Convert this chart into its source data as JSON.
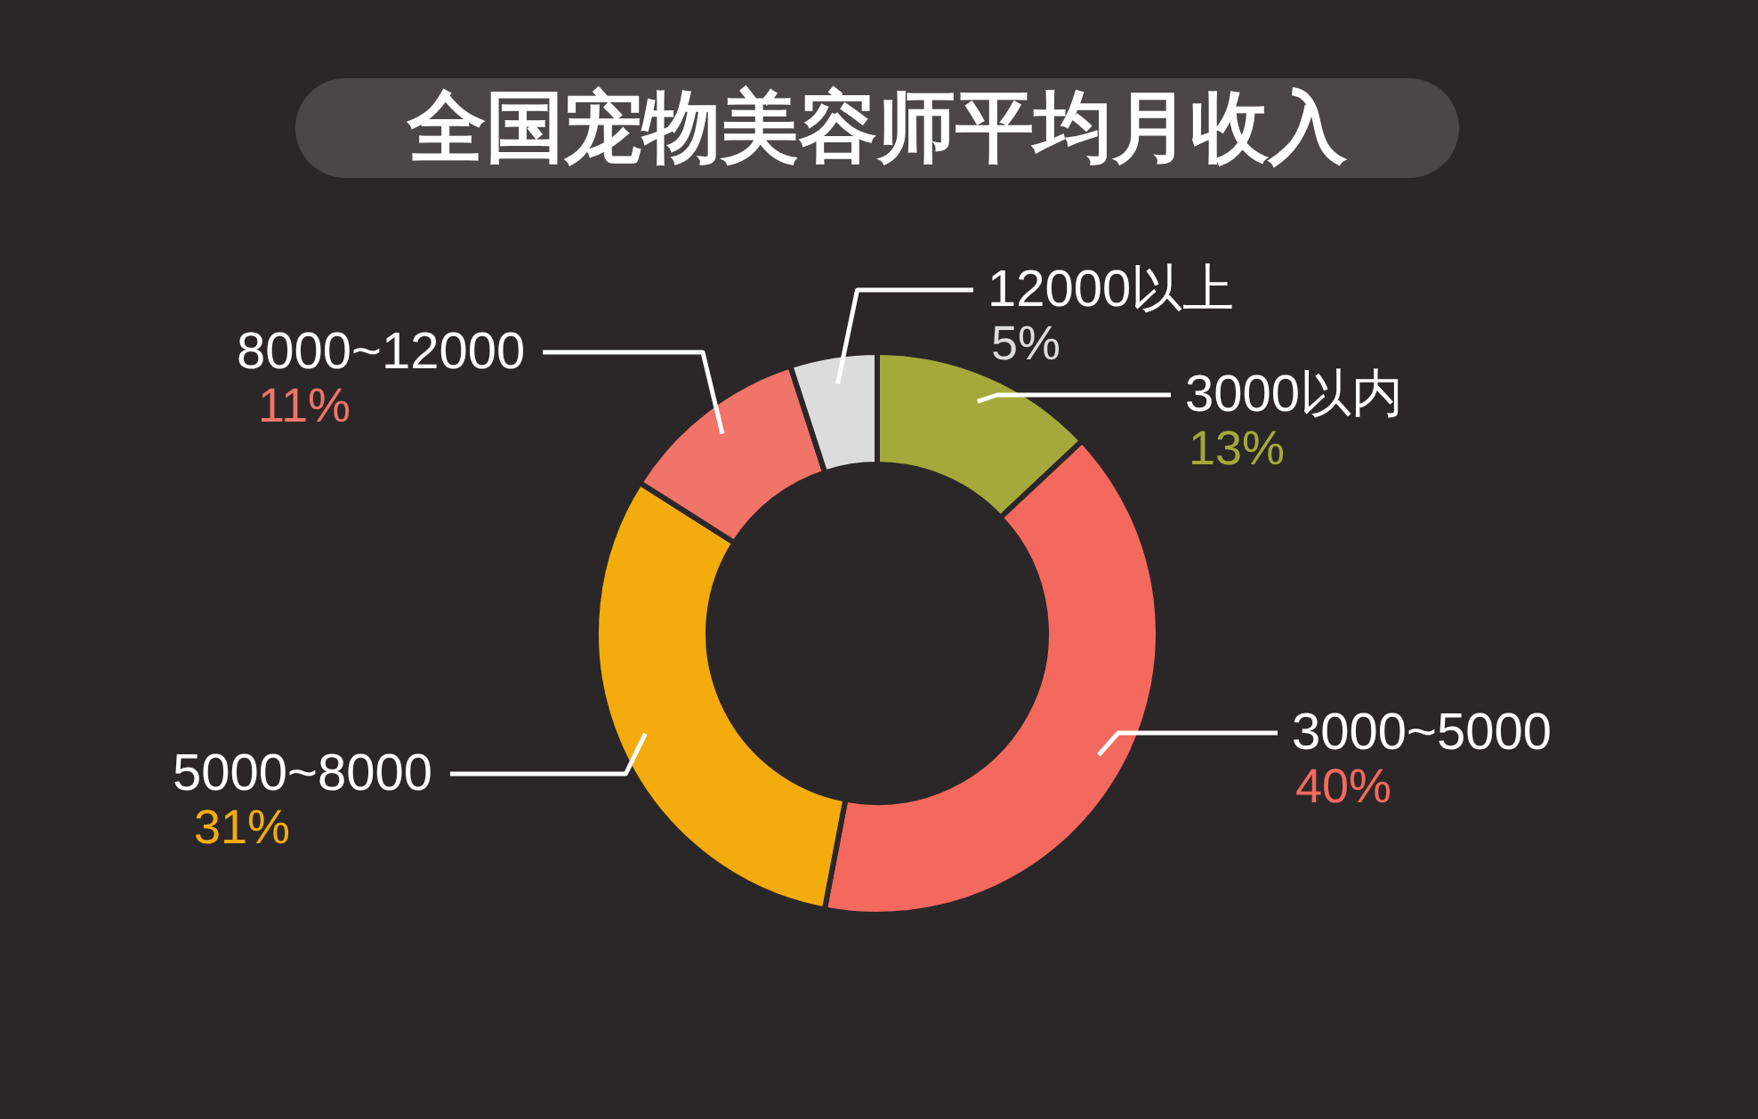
{
  "chart_data": {
    "type": "donut",
    "title": "全国宠物美容师平均月收入",
    "categories": [
      "3000以内",
      "3000~5000",
      "5000~8000",
      "8000~12000",
      "12000以上"
    ],
    "values": [
      13,
      40,
      31,
      11,
      5
    ],
    "colors": [
      "#a4a93b",
      "#f4695e",
      "#f3ac0b",
      "#f07468",
      "#dcdcdc"
    ],
    "value_labels": [
      "13%",
      "40%",
      "31%",
      "11%",
      "5%"
    ]
  }
}
